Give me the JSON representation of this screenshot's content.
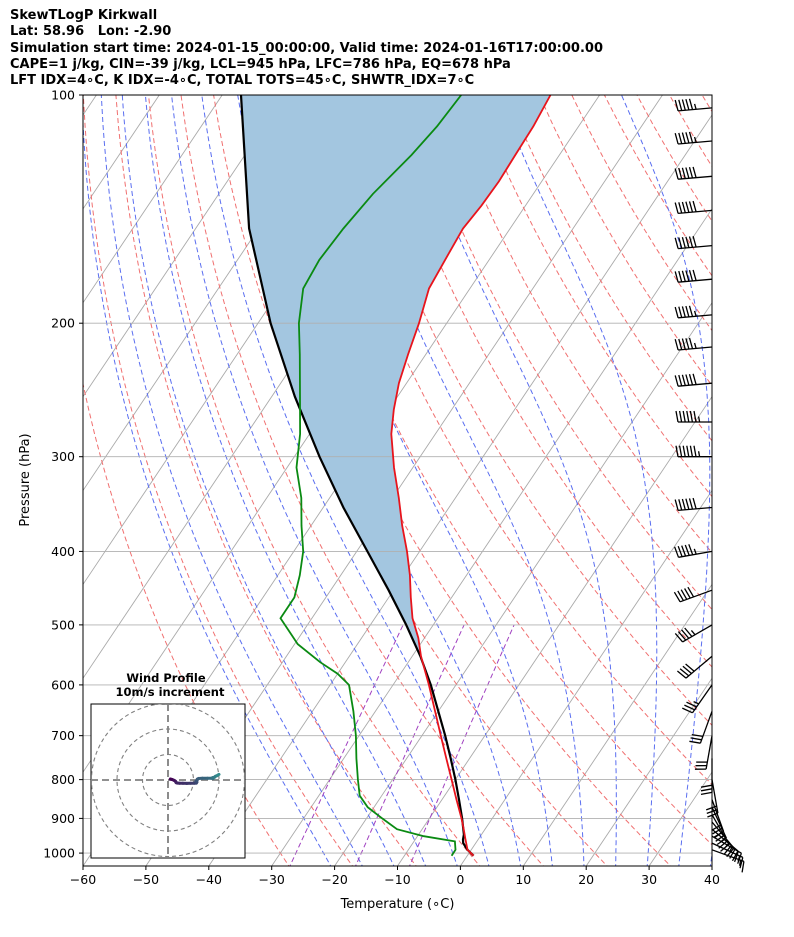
{
  "header": {
    "lines": [
      "SkewTLogP Kirkwall",
      "Lat: 58.96   Lon: -2.90",
      "Simulation start time: 2024-01-15_00:00:00, Valid time: 2024-01-16T17:00:00.00",
      "CAPE=1 j/kg, CIN=-39 j/kg, LCL=945 hPa, LFC=786 hPa, EQ=678 hPa",
      "LFT IDX=4∘C, K IDX=-4∘C, TOTAL TOTS=45∘C, SHWTR_IDX=7∘C"
    ]
  },
  "chart_data": {
    "type": "line",
    "title": "SkewTLogP Kirkwall",
    "xlabel": "Temperature (∘C)",
    "ylabel": "Pressure (hPa)",
    "xlim": [
      -60,
      40
    ],
    "ylim": [
      1040,
      100
    ],
    "y_scale": "log",
    "x_ticks": [
      -60,
      -50,
      -40,
      -30,
      -20,
      -10,
      0,
      10,
      20,
      30,
      40
    ],
    "y_ticks": [
      100,
      200,
      300,
      400,
      500,
      600,
      700,
      800,
      900,
      1000
    ],
    "grid": true,
    "colors": {
      "temperature": "#e8141c",
      "dewpoint": "#0a8a12",
      "parcel": "#000000",
      "cape_fill": "#a3c6e0",
      "dry_adiabats": "#f07070",
      "moist_adiabats": "#5a6ef0",
      "mixing_ratio": "#a040c0",
      "isotherms": "#aaaaaa"
    },
    "series": [
      {
        "key": "temperature",
        "points": [
          [
            1008,
            1.0
          ],
          [
            990,
            -0.6
          ],
          [
            960,
            -2.0
          ],
          [
            930,
            -3.4
          ],
          [
            900,
            -4.9
          ],
          [
            850,
            -7.7
          ],
          [
            800,
            -10.6
          ],
          [
            750,
            -13.7
          ],
          [
            700,
            -17.0
          ],
          [
            650,
            -20.5
          ],
          [
            600,
            -24.3
          ],
          [
            550,
            -28.6
          ],
          [
            520,
            -31.0
          ],
          [
            490,
            -34.0
          ],
          [
            460,
            -36.5
          ],
          [
            430,
            -39.0
          ],
          [
            400,
            -42.0
          ],
          [
            370,
            -45.5
          ],
          [
            340,
            -49.0
          ],
          [
            310,
            -53.0
          ],
          [
            280,
            -57.0
          ],
          [
            260,
            -59.2
          ],
          [
            240,
            -61.2
          ],
          [
            220,
            -62.8
          ],
          [
            200,
            -64.4
          ],
          [
            180,
            -66.5
          ],
          [
            165,
            -67.0
          ],
          [
            150,
            -67.5
          ],
          [
            140,
            -67.0
          ],
          [
            130,
            -66.8
          ],
          [
            120,
            -67.0
          ],
          [
            110,
            -67.2
          ],
          [
            100,
            -67.8
          ]
        ]
      },
      {
        "key": "dewpoint",
        "points": [
          [
            1008,
            -2.5
          ],
          [
            990,
            -2.5
          ],
          [
            965,
            -3.5
          ],
          [
            950,
            -9.0
          ],
          [
            930,
            -14.0
          ],
          [
            900,
            -17.5
          ],
          [
            870,
            -21.0
          ],
          [
            840,
            -23.5
          ],
          [
            800,
            -25.5
          ],
          [
            750,
            -28.0
          ],
          [
            700,
            -30.5
          ],
          [
            650,
            -33.5
          ],
          [
            600,
            -37.0
          ],
          [
            580,
            -40.0
          ],
          [
            560,
            -44.0
          ],
          [
            530,
            -49.5
          ],
          [
            490,
            -55.0
          ],
          [
            460,
            -55.0
          ],
          [
            430,
            -56.5
          ],
          [
            400,
            -58.5
          ],
          [
            370,
            -61.5
          ],
          [
            340,
            -64.5
          ],
          [
            310,
            -68.5
          ],
          [
            280,
            -71.5
          ],
          [
            250,
            -75.5
          ],
          [
            220,
            -80.0
          ],
          [
            200,
            -83.5
          ],
          [
            180,
            -86.5
          ],
          [
            165,
            -87.0
          ],
          [
            150,
            -86.5
          ],
          [
            135,
            -85.5
          ],
          [
            120,
            -83.5
          ],
          [
            110,
            -82.5
          ],
          [
            100,
            -82.0
          ]
        ]
      },
      {
        "key": "parcel",
        "points": [
          [
            1008,
            1.0
          ],
          [
            990,
            -0.6
          ],
          [
            970,
            -2.0
          ],
          [
            960,
            -2.4
          ],
          [
            945,
            -2.8
          ],
          [
            900,
            -4.8
          ],
          [
            850,
            -7.3
          ],
          [
            800,
            -10.0
          ],
          [
            750,
            -13.0
          ],
          [
            700,
            -16.3
          ],
          [
            650,
            -20.0
          ],
          [
            600,
            -24.0
          ],
          [
            550,
            -28.7
          ],
          [
            500,
            -34.3
          ],
          [
            450,
            -40.8
          ],
          [
            400,
            -48.3
          ],
          [
            350,
            -56.8
          ],
          [
            300,
            -66.0
          ],
          [
            250,
            -76.3
          ],
          [
            200,
            -88.0
          ],
          [
            150,
            -101.5
          ],
          [
            100,
            -117.0
          ]
        ]
      }
    ],
    "wind_barbs": {
      "pressures": [
        990,
        970,
        950,
        930,
        910,
        890,
        870,
        850,
        800,
        750,
        700,
        650,
        600,
        550,
        500,
        450,
        400,
        350,
        300,
        270,
        240,
        215,
        195,
        175,
        158,
        142,
        128,
        115,
        104
      ],
      "speeds": [
        15,
        17,
        20,
        23,
        25,
        27,
        28,
        28,
        28,
        30,
        30,
        30,
        35,
        40,
        45,
        50,
        55,
        60,
        65,
        65,
        60,
        55,
        55,
        60,
        60,
        60,
        60,
        55,
        55
      ],
      "directions": [
        110,
        115,
        120,
        130,
        140,
        150,
        155,
        160,
        170,
        180,
        190,
        200,
        215,
        230,
        240,
        250,
        260,
        265,
        270,
        270,
        265,
        265,
        265,
        265,
        265,
        265,
        265,
        265,
        265
      ]
    },
    "hodograph": {
      "title": "Wind Profile",
      "subtitle": "10m/s increment",
      "path_points": [
        [
          -0.9,
          -0.4
        ],
        [
          -1.6,
          -0.2
        ],
        [
          -2.3,
          0.1
        ],
        [
          -2.7,
          0.3
        ],
        [
          -3.0,
          0.6
        ],
        [
          -3.1,
          0.9
        ],
        [
          -3.3,
          1.1
        ],
        [
          -3.8,
          1.2
        ],
        [
          -4.5,
          1.25
        ],
        [
          -5.8,
          1.3
        ],
        [
          -7.4,
          1.35
        ],
        [
          -8.9,
          1.3
        ],
        [
          -10.3,
          1.25
        ],
        [
          -11.1,
          1.2
        ],
        [
          -11.3,
          0.9
        ],
        [
          -10.9,
          0.5
        ],
        [
          -11.4,
          0.1
        ],
        [
          -11.5,
          -0.3
        ],
        [
          -12.0,
          -0.6
        ],
        [
          -13.5,
          -0.7
        ],
        [
          -15.5,
          -0.65
        ],
        [
          -17.0,
          -0.65
        ],
        [
          -17.7,
          -0.6
        ],
        [
          -17.5,
          -0.9
        ],
        [
          -18.3,
          -1.15
        ],
        [
          -18.6,
          -1.45
        ],
        [
          -19.2,
          -1.7
        ],
        [
          -19.6,
          -1.95
        ],
        [
          -20.0,
          -2.2
        ]
      ]
    }
  }
}
